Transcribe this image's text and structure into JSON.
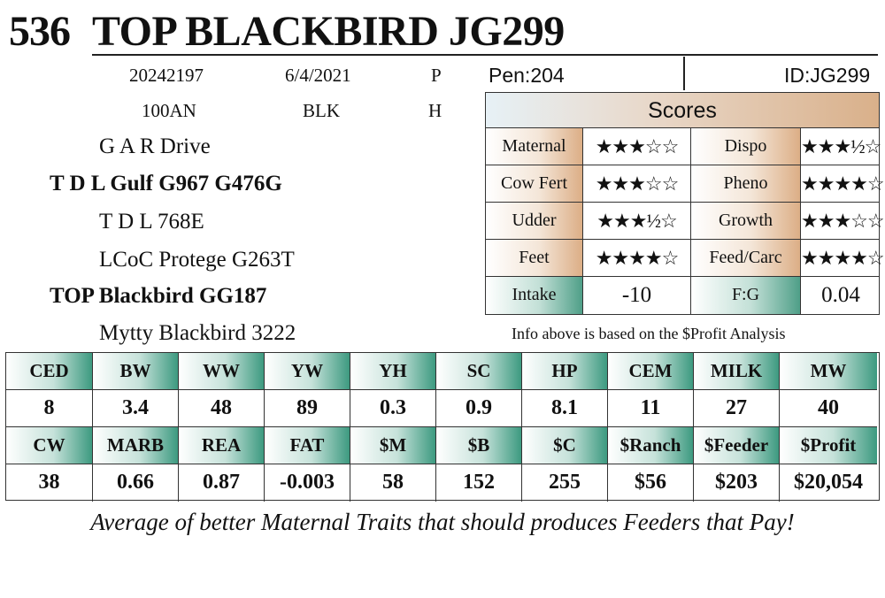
{
  "header": {
    "lot": "536",
    "name": "TOP BLACKBIRD JG299"
  },
  "info": {
    "reg": "20242197",
    "dob": "6/4/2021",
    "code1": "P",
    "tattoo": "100AN",
    "color": "BLK",
    "code2": "H"
  },
  "pedigree": {
    "ss": "G A R Drive",
    "sire": "T D L Gulf G967 G476G",
    "sd": "T D L 768E",
    "ds": "LCoC Protege G263T",
    "dam": "TOP Blackbird GG187",
    "dd": "Mytty Blackbird 3222"
  },
  "pen": {
    "pen": "Pen:204",
    "id": "ID:JG299"
  },
  "scores": {
    "title": "Scores",
    "rows": [
      {
        "l1": "Maternal",
        "v1": "★★★☆☆",
        "l2": "Dispo",
        "v2": "★★★½☆"
      },
      {
        "l1": "Cow Fert",
        "v1": "★★★☆☆",
        "l2": "Pheno",
        "v2": "★★★★☆"
      },
      {
        "l1": "Udder",
        "v1": "★★★½☆",
        "l2": "Growth",
        "v2": "★★★☆☆"
      },
      {
        "l1": "Feet",
        "v1": "★★★★☆",
        "l2": "Feed/Carc",
        "v2": "★★★★☆"
      },
      {
        "l1": "Intake",
        "v1": "-10",
        "l2": "F:G",
        "v2": "0.04"
      }
    ],
    "note": "Info above is based on the $Profit Analysis"
  },
  "epd": {
    "h1": [
      "CED",
      "BW",
      "WW",
      "YW",
      "YH",
      "SC",
      "HP",
      "CEM",
      "MILK",
      "MW"
    ],
    "v1": [
      "8",
      "3.4",
      "48",
      "89",
      "0.3",
      "0.9",
      "8.1",
      "11",
      "27",
      "40"
    ],
    "h2": [
      "CW",
      "MARB",
      "REA",
      "FAT",
      "$M",
      "$B",
      "$C",
      "$Ranch",
      "$Feeder",
      "$Profit"
    ],
    "v2": [
      "38",
      "0.66",
      "0.87",
      "-0.003",
      "58",
      "152",
      "255",
      "$56",
      "$203",
      "$20,054"
    ]
  },
  "tagline": "Average of better Maternal Traits that should produces Feeders that Pay!"
}
